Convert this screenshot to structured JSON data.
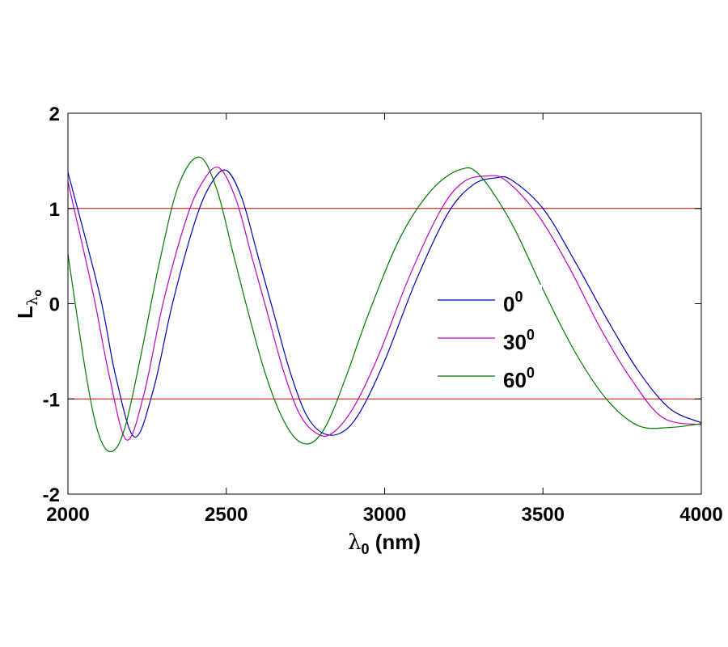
{
  "chart_data": {
    "type": "line",
    "xlabel": "λ0 (nm)",
    "xlabel_parts": {
      "symbol": "λ",
      "sub": "0",
      "rest": " (nm)"
    },
    "ylabel": "Lλo",
    "ylabel_parts": {
      "main": "L",
      "sub_symbol": "λ",
      "sub_sub": "o"
    },
    "xlim": [
      2000,
      4000
    ],
    "ylim": [
      -2,
      2
    ],
    "xticks": [
      2000,
      2500,
      3000,
      3500,
      4000
    ],
    "yticks": [
      -2,
      -1,
      0,
      1,
      2
    ],
    "xtick_labels": [
      "2000",
      "2500",
      "3000",
      "3500",
      "4000"
    ],
    "ytick_labels": [
      "-2",
      "-1",
      "0",
      "1",
      "2"
    ],
    "grid": false,
    "legend_position": "center-right",
    "reference_lines": [
      {
        "y": 1,
        "color": "#cc0000"
      },
      {
        "y": -1,
        "color": "#cc0000"
      }
    ],
    "series": [
      {
        "name": "00",
        "label_main": "0",
        "label_sup": "0",
        "color": "#0000b4",
        "x": [
          2000,
          2100,
          2150,
          2210,
          2270,
          2330,
          2400,
          2450,
          2500,
          2550,
          2600,
          2650,
          2700,
          2750,
          2800,
          2860,
          2920,
          3000,
          3100,
          3200,
          3280,
          3350,
          3400,
          3500,
          3600,
          3700,
          3800,
          3900,
          4000
        ],
        "y": [
          1.38,
          0.1,
          -0.75,
          -1.4,
          -0.9,
          0.0,
          0.85,
          1.25,
          1.4,
          1.1,
          0.5,
          -0.1,
          -0.7,
          -1.15,
          -1.35,
          -1.36,
          -1.15,
          -0.6,
          0.25,
          0.95,
          1.25,
          1.32,
          1.3,
          1.0,
          0.45,
          -0.15,
          -0.7,
          -1.1,
          -1.25
        ]
      },
      {
        "name": "300",
        "label_main": "30",
        "label_sup": "0",
        "color": "#c000c0",
        "x": [
          2000,
          2080,
          2130,
          2185,
          2240,
          2300,
          2370,
          2420,
          2475,
          2530,
          2580,
          2630,
          2680,
          2730,
          2780,
          2830,
          2900,
          2980,
          3080,
          3180,
          3250,
          3320,
          3380,
          3480,
          3580,
          3680,
          3780,
          3880,
          4000
        ],
        "y": [
          1.28,
          0.1,
          -0.75,
          -1.43,
          -0.95,
          0.0,
          0.85,
          1.25,
          1.43,
          1.1,
          0.5,
          -0.1,
          -0.7,
          -1.15,
          -1.35,
          -1.37,
          -1.1,
          -0.55,
          0.3,
          1.0,
          1.28,
          1.34,
          1.3,
          0.95,
          0.4,
          -0.25,
          -0.8,
          -1.2,
          -1.27
        ]
      },
      {
        "name": "600",
        "label_main": "60",
        "label_sup": "0",
        "color": "#007800",
        "x": [
          2000,
          2060,
          2100,
          2140,
          2180,
          2230,
          2290,
          2350,
          2415,
          2470,
          2520,
          2570,
          2620,
          2670,
          2720,
          2770,
          2820,
          2880,
          2950,
          3050,
          3150,
          3240,
          3300,
          3400,
          3500,
          3600,
          3700,
          3800,
          3900,
          4000
        ],
        "y": [
          0.52,
          -0.8,
          -1.4,
          -1.55,
          -1.3,
          -0.55,
          0.45,
          1.25,
          1.54,
          1.2,
          0.55,
          -0.1,
          -0.7,
          -1.15,
          -1.42,
          -1.46,
          -1.25,
          -0.75,
          -0.1,
          0.7,
          1.2,
          1.41,
          1.35,
          0.85,
          0.15,
          -0.5,
          -1.0,
          -1.28,
          -1.3,
          -1.26
        ]
      }
    ]
  }
}
